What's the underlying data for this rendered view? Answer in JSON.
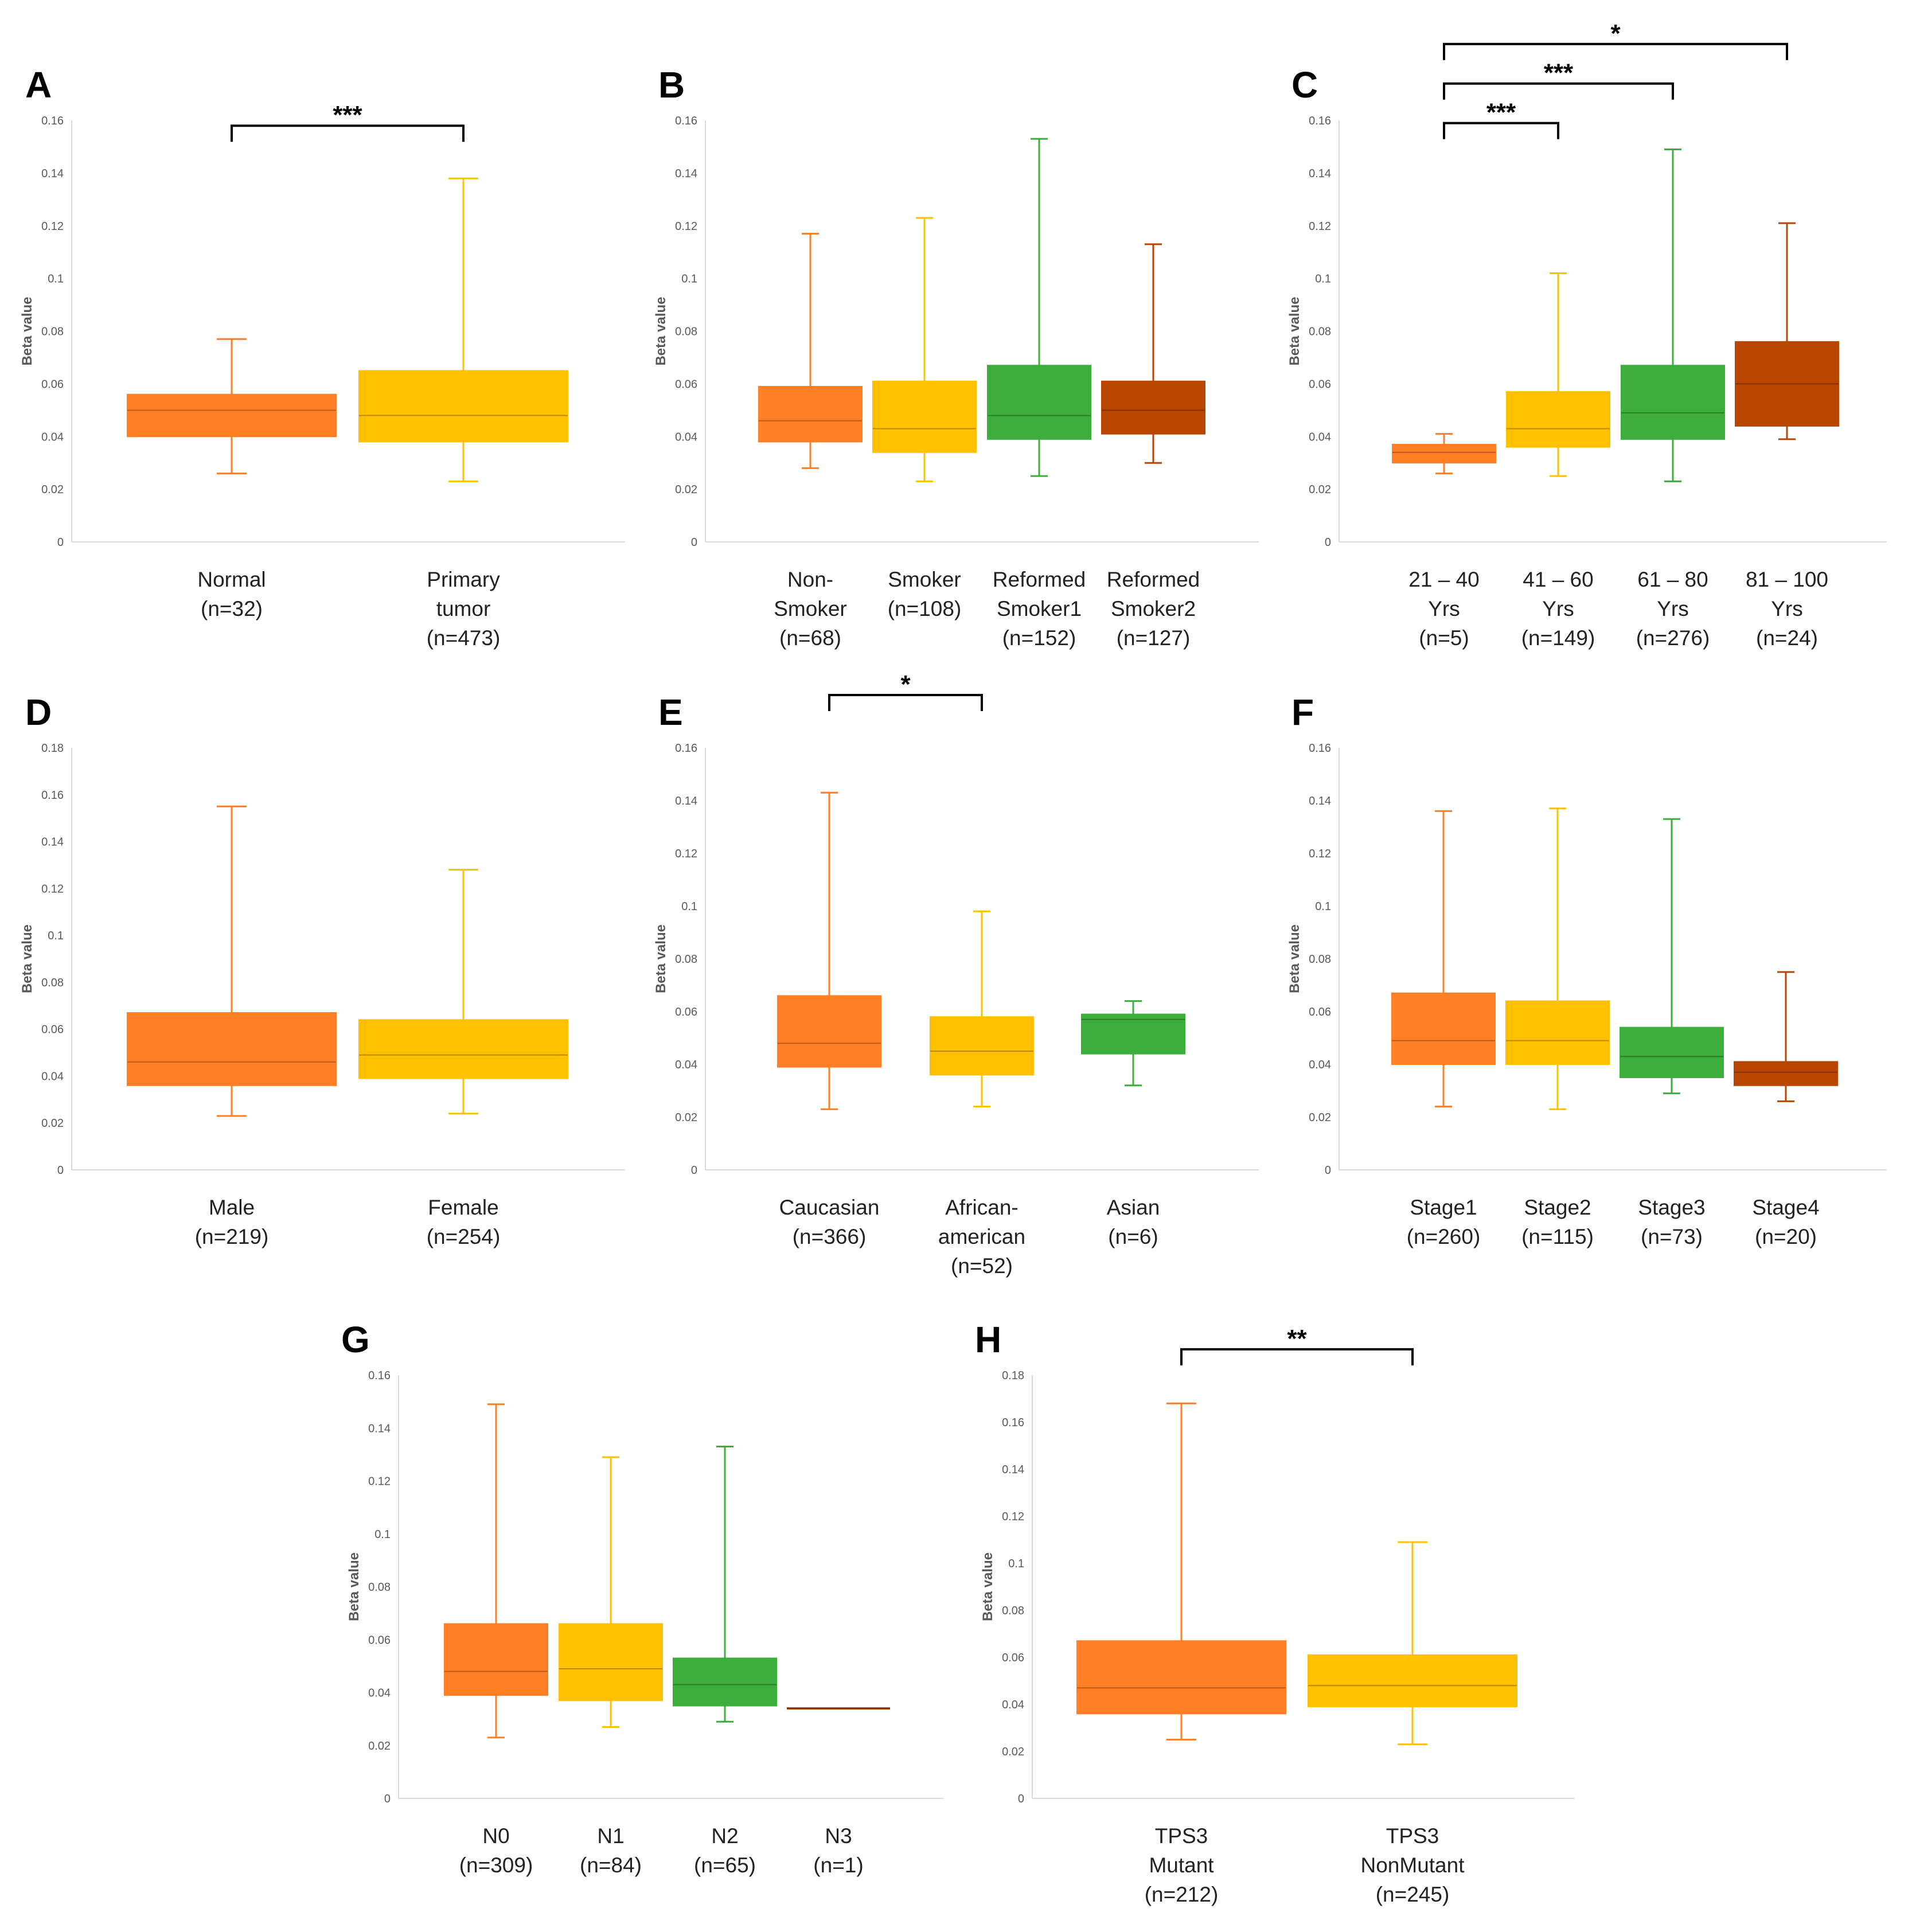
{
  "figure": {
    "y_axis_label": "Beta value"
  },
  "colors": {
    "orange": "#FF7F27",
    "yellow": "#FFC000",
    "green": "#3DAE3B",
    "brown": "#B84500"
  },
  "chart_data": [
    {
      "panel": "A",
      "type": "box",
      "ylabel": "Beta value",
      "ylim": [
        0,
        0.16
      ],
      "yticks": [
        "0",
        "0.02",
        "0.04",
        "0.06",
        "0.08",
        "0.1",
        "0.12",
        "0.14",
        "0.16"
      ],
      "groups": [
        {
          "label": [
            "Normal",
            "(n=32)"
          ],
          "color": "orange",
          "min": 0.026,
          "q1": 0.04,
          "median": 0.05,
          "q3": 0.056,
          "max": 0.077
        },
        {
          "label": [
            "Primary",
            "tumor",
            "(n=473)"
          ],
          "color": "yellow",
          "min": 0.023,
          "q1": 0.038,
          "median": 0.048,
          "q3": 0.065,
          "max": 0.138
        }
      ],
      "significance": [
        {
          "from": 0,
          "to": 1,
          "label": "***",
          "y": 0.158
        }
      ]
    },
    {
      "panel": "B",
      "type": "box",
      "ylabel": "Beta value",
      "ylim": [
        0,
        0.16
      ],
      "yticks": [
        "0",
        "0.02",
        "0.04",
        "0.06",
        "0.08",
        "0.1",
        "0.12",
        "0.14",
        "0.16"
      ],
      "groups": [
        {
          "label": [
            "Non-",
            "Smoker",
            "(n=68)"
          ],
          "color": "orange",
          "min": 0.028,
          "q1": 0.038,
          "median": 0.046,
          "q3": 0.059,
          "max": 0.117
        },
        {
          "label": [
            "Smoker",
            "(n=108)"
          ],
          "color": "yellow",
          "min": 0.023,
          "q1": 0.034,
          "median": 0.043,
          "q3": 0.061,
          "max": 0.123
        },
        {
          "label": [
            "Reformed",
            "Smoker1",
            "(n=152)"
          ],
          "color": "green",
          "min": 0.025,
          "q1": 0.039,
          "median": 0.048,
          "q3": 0.067,
          "max": 0.153
        },
        {
          "label": [
            "Reformed",
            "Smoker2",
            "(n=127)"
          ],
          "color": "brown",
          "min": 0.03,
          "q1": 0.041,
          "median": 0.05,
          "q3": 0.061,
          "max": 0.113
        }
      ],
      "significance": []
    },
    {
      "panel": "C",
      "type": "box",
      "ylabel": "Beta value",
      "ylim": [
        0,
        0.16
      ],
      "yticks": [
        "0",
        "0.02",
        "0.04",
        "0.06",
        "0.08",
        "0.1",
        "0.12",
        "0.14",
        "0.16"
      ],
      "groups": [
        {
          "label": [
            "21 – 40",
            "Yrs",
            "(n=5)"
          ],
          "color": "orange",
          "min": 0.026,
          "q1": 0.03,
          "median": 0.034,
          "q3": 0.037,
          "max": 0.041
        },
        {
          "label": [
            "41 – 60",
            "Yrs",
            "(n=149)"
          ],
          "color": "yellow",
          "min": 0.025,
          "q1": 0.036,
          "median": 0.043,
          "q3": 0.057,
          "max": 0.102
        },
        {
          "label": [
            "61 – 80",
            "Yrs",
            "(n=276)"
          ],
          "color": "green",
          "min": 0.023,
          "q1": 0.039,
          "median": 0.049,
          "q3": 0.067,
          "max": 0.149
        },
        {
          "label": [
            "81 – 100",
            "Yrs",
            "(n=24)"
          ],
          "color": "brown",
          "min": 0.039,
          "q1": 0.044,
          "median": 0.06,
          "q3": 0.076,
          "max": 0.121
        }
      ],
      "significance": [
        {
          "from": 0,
          "to": 1,
          "label": "***",
          "y": 0.159
        },
        {
          "from": 0,
          "to": 2,
          "label": "***",
          "y": 0.174
        },
        {
          "from": 0,
          "to": 3,
          "label": "*",
          "y": 0.189
        }
      ]
    },
    {
      "panel": "D",
      "type": "box",
      "ylabel": "Beta value",
      "ylim": [
        0,
        0.18
      ],
      "yticks": [
        "0",
        "0.02",
        "0.04",
        "0.06",
        "0.08",
        "0.1",
        "0.12",
        "0.14",
        "0.16",
        "0.18"
      ],
      "groups": [
        {
          "label": [
            "Male",
            "(n=219)"
          ],
          "color": "orange",
          "min": 0.023,
          "q1": 0.036,
          "median": 0.046,
          "q3": 0.067,
          "max": 0.155
        },
        {
          "label": [
            "Female",
            "(n=254)"
          ],
          "color": "yellow",
          "min": 0.024,
          "q1": 0.039,
          "median": 0.049,
          "q3": 0.064,
          "max": 0.128
        }
      ],
      "significance": []
    },
    {
      "panel": "E",
      "type": "box",
      "ylabel": "Beta value",
      "ylim": [
        0,
        0.16
      ],
      "yticks": [
        "0",
        "0.02",
        "0.04",
        "0.06",
        "0.08",
        "0.1",
        "0.12",
        "0.14",
        "0.16"
      ],
      "groups": [
        {
          "label": [
            "Caucasian",
            "(n=366)"
          ],
          "color": "orange",
          "min": 0.023,
          "q1": 0.039,
          "median": 0.048,
          "q3": 0.066,
          "max": 0.143
        },
        {
          "label": [
            "African-",
            "american",
            "(n=52)"
          ],
          "color": "yellow",
          "min": 0.024,
          "q1": 0.036,
          "median": 0.045,
          "q3": 0.058,
          "max": 0.098
        },
        {
          "label": [
            "Asian",
            "(n=6)"
          ],
          "color": "green",
          "min": 0.032,
          "q1": 0.044,
          "median": 0.057,
          "q3": 0.059,
          "max": 0.064
        }
      ],
      "significance": [
        {
          "from": 0,
          "to": 1,
          "label": "*",
          "y": 0.18
        }
      ]
    },
    {
      "panel": "F",
      "type": "box",
      "ylabel": "Beta value",
      "ylim": [
        0,
        0.16
      ],
      "yticks": [
        "0",
        "0.02",
        "0.04",
        "0.06",
        "0.08",
        "0.1",
        "0.12",
        "0.14",
        "0.16"
      ],
      "groups": [
        {
          "label": [
            "Stage1",
            "(n=260)"
          ],
          "color": "orange",
          "min": 0.024,
          "q1": 0.04,
          "median": 0.049,
          "q3": 0.067,
          "max": 0.136
        },
        {
          "label": [
            "Stage2",
            "(n=115)"
          ],
          "color": "yellow",
          "min": 0.023,
          "q1": 0.04,
          "median": 0.049,
          "q3": 0.064,
          "max": 0.137
        },
        {
          "label": [
            "Stage3",
            "(n=73)"
          ],
          "color": "green",
          "min": 0.029,
          "q1": 0.035,
          "median": 0.043,
          "q3": 0.054,
          "max": 0.133
        },
        {
          "label": [
            "Stage4",
            "(n=20)"
          ],
          "color": "brown",
          "min": 0.026,
          "q1": 0.032,
          "median": 0.037,
          "q3": 0.041,
          "max": 0.075
        }
      ],
      "significance": []
    },
    {
      "panel": "G",
      "type": "box",
      "ylabel": "Beta value",
      "ylim": [
        0,
        0.16
      ],
      "yticks": [
        "0",
        "0.02",
        "0.04",
        "0.06",
        "0.08",
        "0.1",
        "0.12",
        "0.14",
        "0.16"
      ],
      "groups": [
        {
          "label": [
            "N0",
            "(n=309)"
          ],
          "color": "orange",
          "min": 0.023,
          "q1": 0.039,
          "median": 0.048,
          "q3": 0.066,
          "max": 0.149
        },
        {
          "label": [
            "N1",
            "(n=84)"
          ],
          "color": "yellow",
          "min": 0.027,
          "q1": 0.037,
          "median": 0.049,
          "q3": 0.066,
          "max": 0.129
        },
        {
          "label": [
            "N2",
            "(n=65)"
          ],
          "color": "green",
          "min": 0.029,
          "q1": 0.035,
          "median": 0.043,
          "q3": 0.053,
          "max": 0.133
        },
        {
          "label": [
            "N3",
            "(n=1)"
          ],
          "color": "brown",
          "min": 0.034,
          "q1": 0.034,
          "median": 0.034,
          "q3": 0.034,
          "max": 0.034
        }
      ],
      "significance": []
    },
    {
      "panel": "H",
      "type": "box",
      "ylabel": "Beta value",
      "ylim": [
        0,
        0.18
      ],
      "yticks": [
        "0",
        "0.02",
        "0.04",
        "0.06",
        "0.08",
        "0.1",
        "0.12",
        "0.14",
        "0.16",
        "0.18"
      ],
      "groups": [
        {
          "label": [
            "TPS3",
            "Mutant",
            "(n=212)"
          ],
          "color": "orange",
          "min": 0.025,
          "q1": 0.036,
          "median": 0.047,
          "q3": 0.067,
          "max": 0.168
        },
        {
          "label": [
            "TPS3",
            "NonMutant",
            "(n=245)"
          ],
          "color": "yellow",
          "min": 0.023,
          "q1": 0.039,
          "median": 0.048,
          "q3": 0.061,
          "max": 0.109
        }
      ],
      "significance": [
        {
          "from": 0,
          "to": 1,
          "label": "**",
          "y": 0.191
        }
      ]
    }
  ]
}
